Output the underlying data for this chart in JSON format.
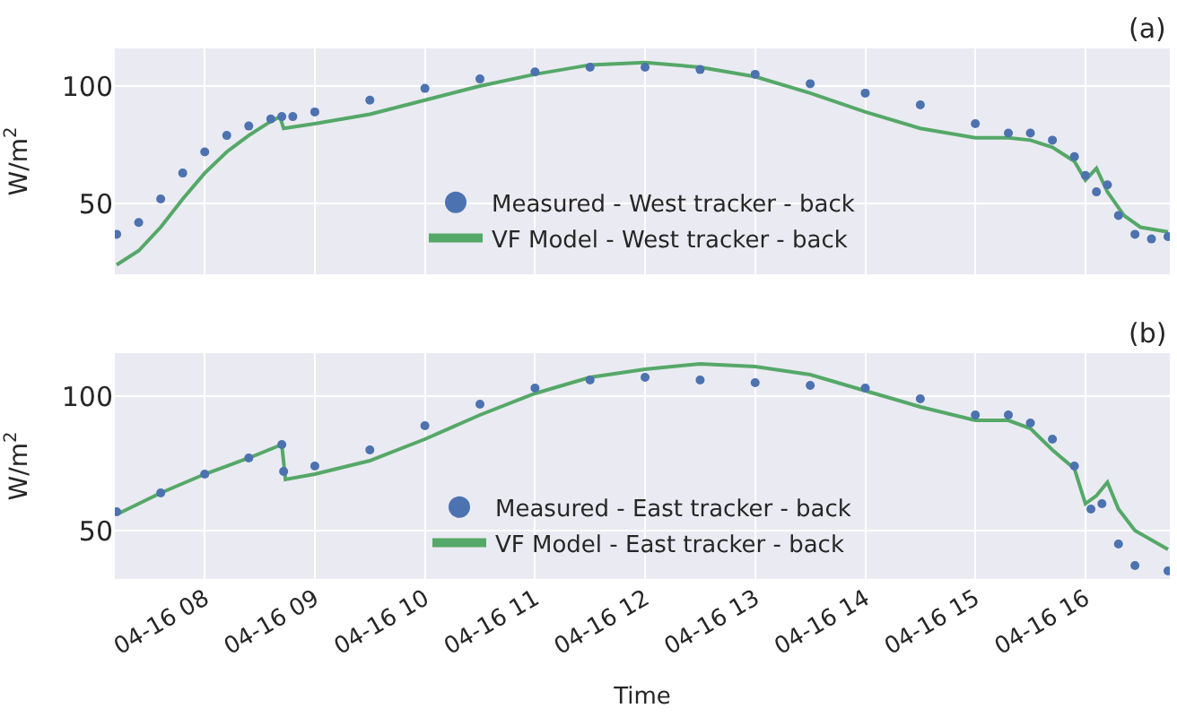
{
  "chart_data": [
    {
      "type": "line",
      "ylabel": "W/m$^{2}$",
      "annotations": [
        "(a)"
      ],
      "ylim": [
        20,
        116
      ],
      "yticks": [
        50,
        100
      ],
      "xlim": [
        "--04-16T07:11",
        "--04-16T16:46"
      ],
      "xticks": [
        {
          "value": "--04-16T08:00",
          "label": "04-16 08"
        },
        {
          "value": "--04-16T09:00",
          "label": "04-16 09"
        },
        {
          "value": "--04-16T10:00",
          "label": "04-16 10"
        },
        {
          "value": "--04-16T11:00",
          "label": "04-16 11"
        },
        {
          "value": "--04-16T12:00",
          "label": "04-16 12"
        },
        {
          "value": "--04-16T13:00",
          "label": "04-16 13"
        },
        {
          "value": "--04-16T14:00",
          "label": "04-16 14"
        },
        {
          "value": "--04-16T15:00",
          "label": "04-16 15"
        },
        {
          "value": "--04-16T16:00",
          "label": "04-16 16"
        }
      ],
      "tick_labels": "y",
      "grid": true,
      "legend": "bottom",
      "series": [
        {
          "name": "Measured - West tracker - back",
          "type": "scatter",
          "marker": "circle",
          "color": "#4c72b0",
          "x": [
            "--04-16T07:12",
            "--04-16T07:24",
            "--04-16T07:36",
            "--04-16T07:48",
            "--04-16T08:00",
            "--04-16T08:12",
            "--04-16T08:24",
            "--04-16T08:36",
            "--04-16T08:42",
            "--04-16T08:48",
            "--04-16T09:00",
            "--04-16T09:30",
            "--04-16T10:00",
            "--04-16T10:30",
            "--04-16T11:00",
            "--04-16T11:30",
            "--04-16T12:00",
            "--04-16T12:30",
            "--04-16T13:00",
            "--04-16T13:30",
            "--04-16T14:00",
            "--04-16T14:30",
            "--04-16T15:00",
            "--04-16T15:18",
            "--04-16T15:30",
            "--04-16T15:42",
            "--04-16T15:54",
            "--04-16T16:00",
            "--04-16T16:06",
            "--04-16T16:12",
            "--04-16T16:18",
            "--04-16T16:27",
            "--04-16T16:36",
            "--04-16T16:45"
          ],
          "values": [
            37,
            42,
            52,
            63,
            72,
            79,
            83,
            86,
            87,
            87,
            89,
            94,
            99,
            103,
            106,
            108,
            108,
            107,
            105,
            101,
            97,
            92,
            84,
            80,
            80,
            77,
            70,
            62,
            55,
            58,
            45,
            37,
            35,
            36
          ]
        },
        {
          "name": "VF Model - West tracker - back",
          "marker": "none",
          "line_style": "solid",
          "color": "#55a868",
          "x": [
            "--04-16T07:12",
            "--04-16T07:24",
            "--04-16T07:36",
            "--04-16T07:48",
            "--04-16T08:00",
            "--04-16T08:12",
            "--04-16T08:24",
            "--04-16T08:36",
            "--04-16T08:41",
            "--04-16T08:43",
            "--04-16T09:00",
            "--04-16T09:30",
            "--04-16T10:00",
            "--04-16T10:30",
            "--04-16T11:00",
            "--04-16T11:30",
            "--04-16T12:00",
            "--04-16T12:30",
            "--04-16T13:00",
            "--04-16T13:30",
            "--04-16T14:00",
            "--04-16T14:30",
            "--04-16T15:00",
            "--04-16T15:18",
            "--04-16T15:30",
            "--04-16T15:42",
            "--04-16T15:54",
            "--04-16T16:00",
            "--04-16T16:06",
            "--04-16T16:12",
            "--04-16T16:21",
            "--04-16T16:30",
            "--04-16T16:45"
          ],
          "values": [
            24,
            30,
            40,
            52,
            63,
            72,
            79,
            85,
            87,
            82,
            84,
            88,
            94,
            100,
            105,
            109,
            110,
            108,
            104,
            97,
            89,
            82,
            78,
            78,
            77,
            74,
            68,
            60,
            65,
            55,
            45,
            40,
            38
          ]
        }
      ]
    },
    {
      "type": "line",
      "xlabel": "Time",
      "ylabel": "W/m$^{2}$",
      "annotations": [
        "(b)"
      ],
      "ylim": [
        32,
        116
      ],
      "yticks": [
        50,
        100
      ],
      "xlim": [
        "--04-16T07:11",
        "--04-16T16:46"
      ],
      "xticks": [
        {
          "value": "--04-16T08:00",
          "label": "04-16 08"
        },
        {
          "value": "--04-16T09:00",
          "label": "04-16 09"
        },
        {
          "value": "--04-16T10:00",
          "label": "04-16 10"
        },
        {
          "value": "--04-16T11:00",
          "label": "04-16 11"
        },
        {
          "value": "--04-16T12:00",
          "label": "04-16 12"
        },
        {
          "value": "--04-16T13:00",
          "label": "04-16 13"
        },
        {
          "value": "--04-16T14:00",
          "label": "04-16 14"
        },
        {
          "value": "--04-16T15:00",
          "label": "04-16 15"
        },
        {
          "value": "--04-16T16:00",
          "label": "04-16 16"
        }
      ],
      "grid": true,
      "legend": "bottom",
      "series": [
        {
          "name": "Measured - East tracker - back",
          "type": "scatter",
          "marker": "circle",
          "color": "#4c72b0",
          "x": [
            "--04-16T07:12",
            "--04-16T07:36",
            "--04-16T08:00",
            "--04-16T08:24",
            "--04-16T08:42",
            "--04-16T08:43",
            "--04-16T09:00",
            "--04-16T09:30",
            "--04-16T10:00",
            "--04-16T10:30",
            "--04-16T11:00",
            "--04-16T11:30",
            "--04-16T12:00",
            "--04-16T12:30",
            "--04-16T13:00",
            "--04-16T13:30",
            "--04-16T14:00",
            "--04-16T14:30",
            "--04-16T15:00",
            "--04-16T15:18",
            "--04-16T15:30",
            "--04-16T15:42",
            "--04-16T15:54",
            "--04-16T16:03",
            "--04-16T16:09",
            "--04-16T16:18",
            "--04-16T16:27",
            "--04-16T16:45"
          ],
          "values": [
            57,
            64,
            71,
            77,
            82,
            72,
            74,
            80,
            89,
            97,
            103,
            106,
            107,
            106,
            105,
            104,
            103,
            99,
            93,
            93,
            90,
            84,
            74,
            58,
            60,
            45,
            37,
            35
          ]
        },
        {
          "name": "VF Model - East tracker - back",
          "marker": "none",
          "line_style": "solid",
          "color": "#55a868",
          "x": [
            "--04-16T07:12",
            "--04-16T07:36",
            "--04-16T08:00",
            "--04-16T08:24",
            "--04-16T08:42",
            "--04-16T08:44",
            "--04-16T09:00",
            "--04-16T09:30",
            "--04-16T10:00",
            "--04-16T10:30",
            "--04-16T11:00",
            "--04-16T11:30",
            "--04-16T12:00",
            "--04-16T12:30",
            "--04-16T13:00",
            "--04-16T13:30",
            "--04-16T14:00",
            "--04-16T14:30",
            "--04-16T15:00",
            "--04-16T15:18",
            "--04-16T15:30",
            "--04-16T15:42",
            "--04-16T15:54",
            "--04-16T16:00",
            "--04-16T16:06",
            "--04-16T16:12",
            "--04-16T16:18",
            "--04-16T16:27",
            "--04-16T16:45"
          ],
          "values": [
            56,
            64,
            71,
            77,
            82,
            69,
            71,
            76,
            84,
            93,
            101,
            107,
            110,
            112,
            111,
            108,
            102,
            96,
            91,
            91,
            88,
            80,
            73,
            60,
            63,
            68,
            58,
            50,
            43
          ]
        }
      ]
    }
  ]
}
